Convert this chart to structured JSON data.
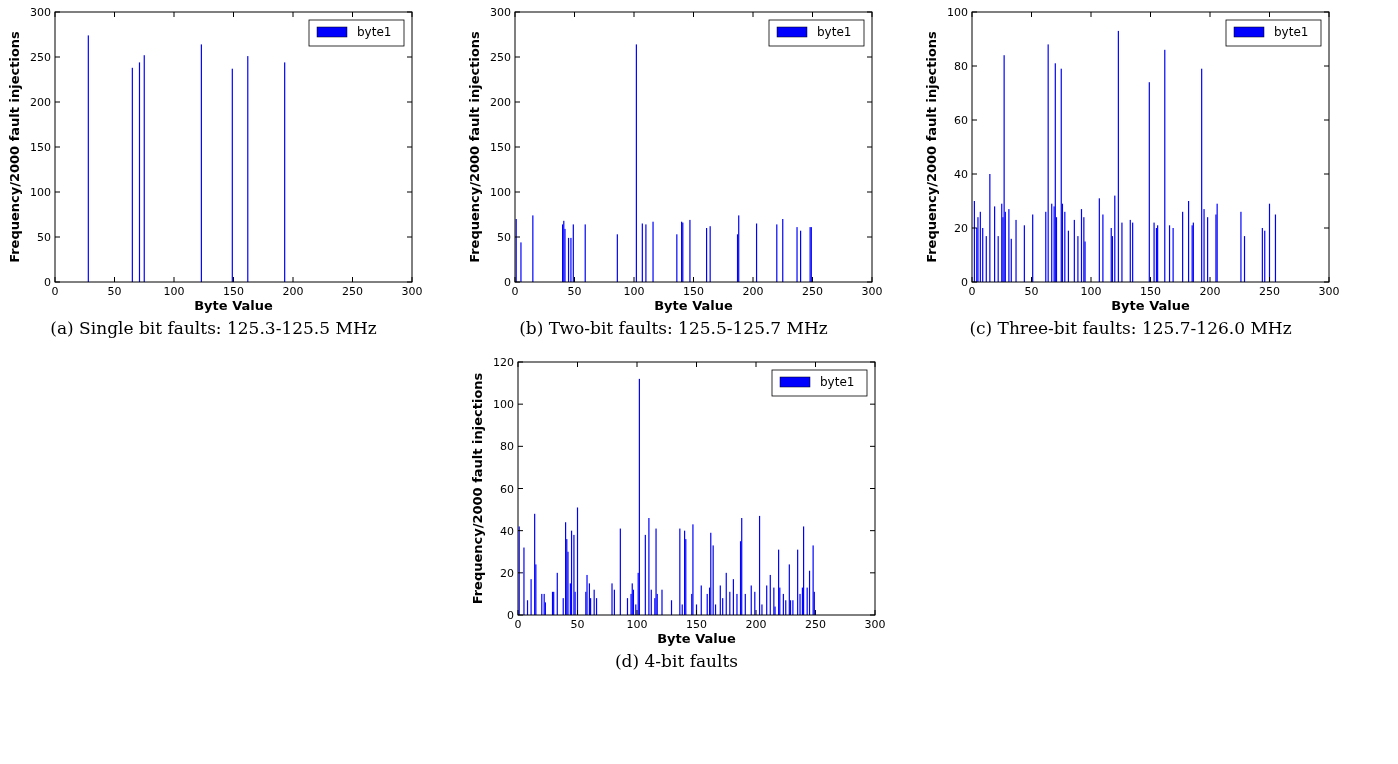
{
  "chart_data": [
    {
      "type": "bar",
      "title": "(a) Single bit faults: 125.3-125.5 MHz",
      "xlabel": "Byte Value",
      "ylabel": "Frequency/2000 fault injections",
      "xlim": [
        0,
        300
      ],
      "xticks": [
        0,
        50,
        100,
        150,
        200,
        250,
        300
      ],
      "ylim": [
        0,
        300
      ],
      "yticks": [
        0,
        50,
        100,
        150,
        200,
        250,
        300
      ],
      "legend": "top right",
      "x": [
        28,
        65,
        71,
        75,
        123,
        149,
        162,
        193
      ],
      "series": [
        {
          "name": "byte1",
          "color": "#0000ff",
          "values": [
            274,
            238,
            244,
            252,
            264,
            237,
            251,
            244
          ]
        }
      ]
    },
    {
      "type": "bar",
      "title": "(b) Two-bit faults: 125.5-125.7 MHz",
      "xlabel": "Byte Value",
      "ylabel": "Frequency/2000 fault injections",
      "xlim": [
        0,
        300
      ],
      "xticks": [
        0,
        50,
        100,
        150,
        200,
        250,
        300
      ],
      "ylim": [
        0,
        300
      ],
      "yticks": [
        0,
        50,
        100,
        150,
        200,
        250,
        300
      ],
      "legend": "top right",
      "x": [
        1,
        5,
        15,
        40,
        41,
        42,
        45,
        47,
        49,
        59,
        86,
        102,
        107,
        110,
        116,
        136,
        140,
        141,
        147,
        161,
        164,
        187,
        188,
        203,
        220,
        225,
        237,
        240,
        248,
        249
      ],
      "series": [
        {
          "name": "byte1",
          "color": "#0000ff",
          "values": [
            70,
            44,
            74,
            64,
            68,
            59,
            49,
            49,
            64,
            64,
            53,
            264,
            65,
            64,
            67,
            53,
            67,
            66,
            69,
            60,
            62,
            53,
            74,
            65,
            64,
            70,
            61,
            57,
            61,
            61
          ]
        }
      ]
    },
    {
      "type": "bar",
      "title": "(c) Three-bit faults: 125.7-126.0 MHz",
      "xlabel": "Byte Value",
      "ylabel": "Frequency/2000 fault injections",
      "xlim": [
        0,
        300
      ],
      "xticks": [
        0,
        50,
        100,
        150,
        200,
        250,
        300
      ],
      "ylim": [
        0,
        100
      ],
      "yticks": [
        0,
        20,
        40,
        60,
        80,
        100
      ],
      "legend": "top right",
      "x": [
        2,
        4,
        5,
        7,
        9,
        12,
        15,
        19,
        22,
        25,
        26,
        27,
        28,
        31,
        33,
        37,
        44,
        51,
        62,
        64,
        67,
        69,
        70,
        71,
        75,
        76,
        78,
        81,
        86,
        89,
        92,
        94,
        95,
        107,
        110,
        117,
        118,
        120,
        123,
        126,
        133,
        135,
        149,
        153,
        155,
        156,
        162,
        166,
        169,
        177,
        182,
        185,
        186,
        193,
        195,
        198,
        205,
        206,
        226,
        229,
        244,
        246,
        250,
        255
      ],
      "series": [
        {
          "name": "byte1",
          "color": "#0000ff",
          "values": [
            30,
            20,
            24,
            26,
            20,
            17,
            40,
            28,
            17,
            29,
            24,
            84,
            26,
            27,
            16,
            23,
            21,
            25,
            26,
            88,
            29,
            28,
            81,
            24,
            79,
            29,
            26,
            19,
            23,
            17,
            27,
            24,
            15,
            31,
            25,
            20,
            17,
            32,
            93,
            22,
            23,
            22,
            74,
            22,
            20,
            21,
            86,
            21,
            20,
            26,
            30,
            21,
            22,
            79,
            27,
            24,
            25,
            29,
            26,
            17,
            20,
            19,
            29,
            25
          ]
        }
      ]
    },
    {
      "type": "bar",
      "title": "(d) 4-bit faults",
      "xlabel": "Byte Value",
      "ylabel": "Frequency/2000 fault injections",
      "xlim": [
        0,
        300
      ],
      "xticks": [
        0,
        50,
        100,
        150,
        200,
        250,
        300
      ],
      "ylim": [
        0,
        120
      ],
      "yticks": [
        0,
        20,
        40,
        60,
        80,
        100,
        120
      ],
      "legend": "top right",
      "x": [
        1,
        5,
        8,
        11,
        14,
        15,
        20,
        22,
        23,
        29,
        30,
        33,
        38,
        40,
        41,
        42,
        44,
        45,
        47,
        48,
        50,
        57,
        58,
        60,
        61,
        64,
        66,
        79,
        81,
        86,
        92,
        95,
        96,
        97,
        99,
        101,
        102,
        107,
        110,
        112,
        115,
        116,
        117,
        121,
        129,
        136,
        138,
        140,
        141,
        146,
        147,
        150,
        154,
        159,
        161,
        162,
        164,
        166,
        170,
        172,
        175,
        178,
        181,
        184,
        187,
        188,
        191,
        196,
        199,
        203,
        205,
        209,
        212,
        215,
        216,
        219,
        220,
        223,
        225,
        228,
        229,
        231,
        235,
        237,
        239,
        240,
        243,
        245,
        248,
        249
      ],
      "series": [
        {
          "name": "byte1",
          "color": "#0000ff",
          "values": [
            42,
            32,
            7,
            17,
            48,
            24,
            10,
            10,
            6,
            11,
            11,
            20,
            8,
            44,
            36,
            30,
            15,
            40,
            38,
            11,
            51,
            11,
            19,
            15,
            8,
            12,
            8,
            15,
            12,
            41,
            8,
            10,
            15,
            12,
            5,
            20,
            112,
            38,
            46,
            12,
            8,
            41,
            10,
            12,
            7,
            41,
            5,
            40,
            36,
            10,
            43,
            5,
            14,
            10,
            13,
            39,
            33,
            5,
            14,
            8,
            20,
            11,
            17,
            10,
            35,
            46,
            10,
            14,
            11,
            47,
            5,
            14,
            19,
            13,
            4,
            31,
            13,
            10,
            7,
            24,
            7,
            7,
            31,
            10,
            13,
            42,
            13,
            21,
            33,
            11
          ]
        }
      ]
    }
  ]
}
